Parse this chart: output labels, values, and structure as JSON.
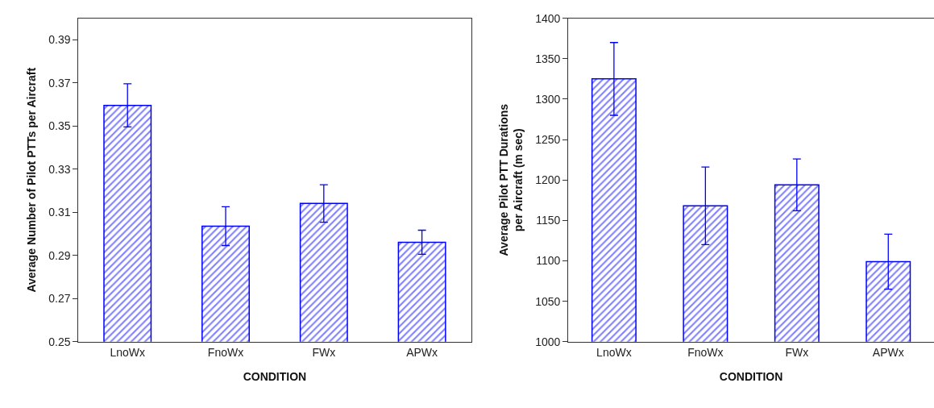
{
  "chart_data": [
    {
      "type": "bar",
      "xlabel": "CONDITION",
      "ylabel": "Average Number of Pilot PTTs per Aircraft",
      "categories": [
        "LnoWx",
        "FnoWx",
        "FWx",
        "APWx"
      ],
      "series": [
        {
          "color": "#0000ff",
          "values": [
            0.3596,
            0.3036,
            0.3141,
            0.2961
          ],
          "errors": [
            0.01,
            0.009,
            0.0087,
            0.0056
          ]
        }
      ],
      "ylim": [
        0.25,
        0.4
      ],
      "yticks": [
        0.25,
        0.27,
        0.29,
        0.31,
        0.33,
        0.35,
        0.37,
        0.39
      ]
    },
    {
      "type": "bar",
      "xlabel": "CONDITION",
      "ylabel": "Average Pilot PTT Durations\nper Aircraft (m sec)",
      "categories": [
        "LnoWx",
        "FnoWx",
        "FWx",
        "APWx"
      ],
      "series": [
        {
          "color": "#0000ff",
          "values": [
            1325,
            1168,
            1194,
            1099
          ],
          "errors": [
            45,
            48,
            32,
            34
          ]
        }
      ],
      "ylim": [
        1000,
        1400
      ],
      "yticks": [
        1000,
        1050,
        1100,
        1150,
        1200,
        1250,
        1300,
        1350,
        1400
      ]
    }
  ]
}
